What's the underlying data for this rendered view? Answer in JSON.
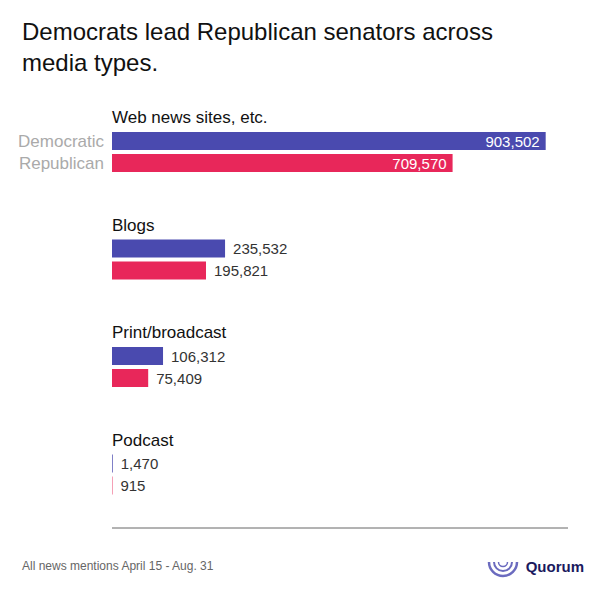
{
  "chart_data": {
    "type": "bar",
    "orientation": "horizontal",
    "title": "Democrats lead Republican senators across\nmedia types.",
    "annotations": [
      "All news mentions April 15 - Aug. 31",
      "Quorum"
    ],
    "categories": [
      "Web news sites, etc.",
      "Blogs",
      "Print/broadcast",
      "Podcast"
    ],
    "series": [
      {
        "name": "Democratic",
        "color": "#4a4aaf",
        "values": [
          903502,
          235532,
          106312,
          1470
        ],
        "value_labels": [
          "903,502",
          "235,532",
          "106,312",
          "1,470"
        ]
      },
      {
        "name": "Republican",
        "color": "#e8275a",
        "values": [
          709570,
          195821,
          75409,
          915
        ],
        "value_labels": [
          "709,570",
          "195,821",
          "75,409",
          "915"
        ]
      }
    ],
    "xlim": [
      0,
      950000
    ],
    "data_labels": true,
    "tick_labels": "y",
    "grid": false
  }
}
